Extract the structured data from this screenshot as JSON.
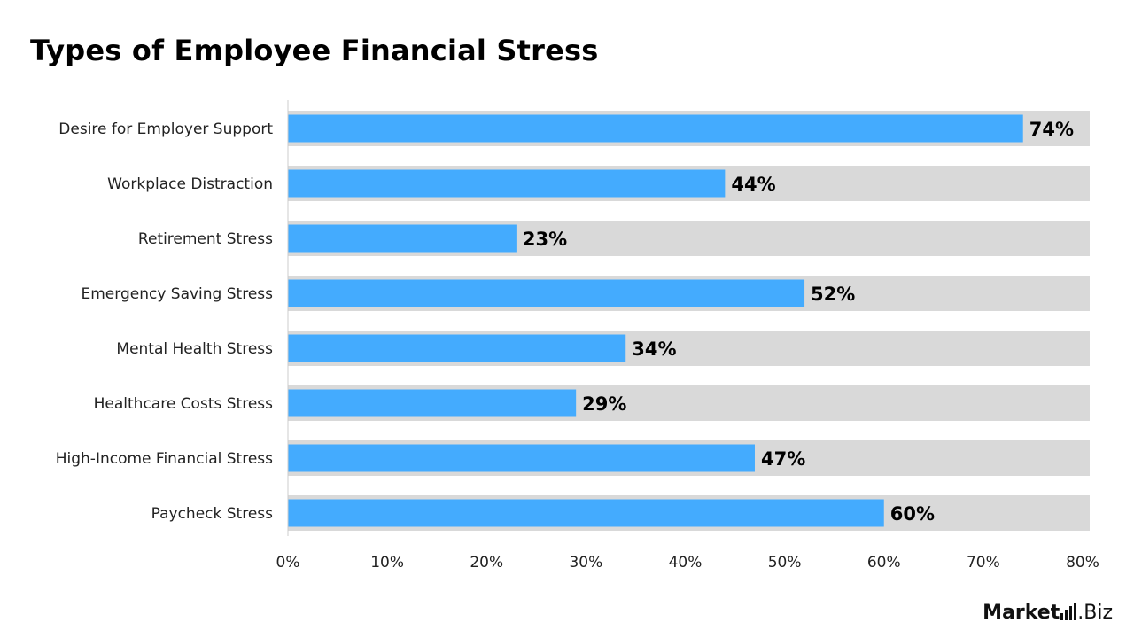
{
  "title": "Types of Employee Financial Stress",
  "colors": {
    "bar": "#44abfe",
    "track": "#d9d9d9",
    "axis": "#cccccc"
  },
  "logo": {
    "bold": "Market",
    "rest": ".Biz"
  },
  "chart_data": {
    "type": "bar",
    "orientation": "horizontal",
    "title": "Types of Employee Financial Stress",
    "categories": [
      "Desire for Employer Support",
      "Workplace Distraction",
      "Retirement Stress",
      "Emergency Saving Stress",
      "Mental Health Stress",
      "Healthcare Costs Stress",
      "High-Income Financial Stress",
      "Paycheck Stress"
    ],
    "values": [
      74,
      44,
      23,
      52,
      34,
      29,
      47,
      60
    ],
    "value_labels": [
      "74%",
      "44%",
      "23%",
      "52%",
      "34%",
      "29%",
      "47%",
      "60%"
    ],
    "xlim": [
      0,
      80
    ],
    "xticks": [
      "0%",
      "10%",
      "20%",
      "30%",
      "40%",
      "50%",
      "60%",
      "70%",
      "80%"
    ],
    "xlabel": "",
    "ylabel": "",
    "grid": false,
    "legend": "none"
  }
}
